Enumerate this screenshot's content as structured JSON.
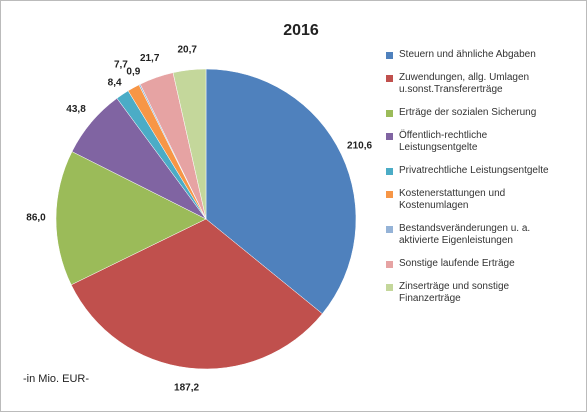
{
  "chart_data": {
    "type": "pie",
    "title": "2016",
    "note": "-in Mio. EUR-",
    "categories": [
      "Steuern und ähnliche Abgaben",
      "Zuwendungen, allg. Umlagen\nu.sonst.Transfererträge",
      "Erträge der sozialen Sicherung",
      "Öffentlich-rechtliche\nLeistungsentgelte",
      "Privatrechtliche Leistungsentgelte",
      "Kostenerstattungen und\nKostenumlagen",
      "Bestandsveränderungen u. a.\naktivierte Eigenleistungen",
      "Sonstige laufende Erträge",
      "Zinserträge und sonstige\nFinanzerträge"
    ],
    "values": [
      210.6,
      187.2,
      86.0,
      43.8,
      8.4,
      7.7,
      0.9,
      21.7,
      20.7
    ],
    "value_labels": [
      "210,6",
      "187,2",
      "86,0",
      "43,8",
      "8,4",
      "7,7",
      "0,9",
      "21,7",
      "20,7"
    ],
    "colors": [
      "#4f81bd",
      "#c0504d",
      "#9bbb59",
      "#8064a2",
      "#4bacc6",
      "#f79646",
      "#95b3d7",
      "#e6a3a3",
      "#c4d79b"
    ]
  }
}
